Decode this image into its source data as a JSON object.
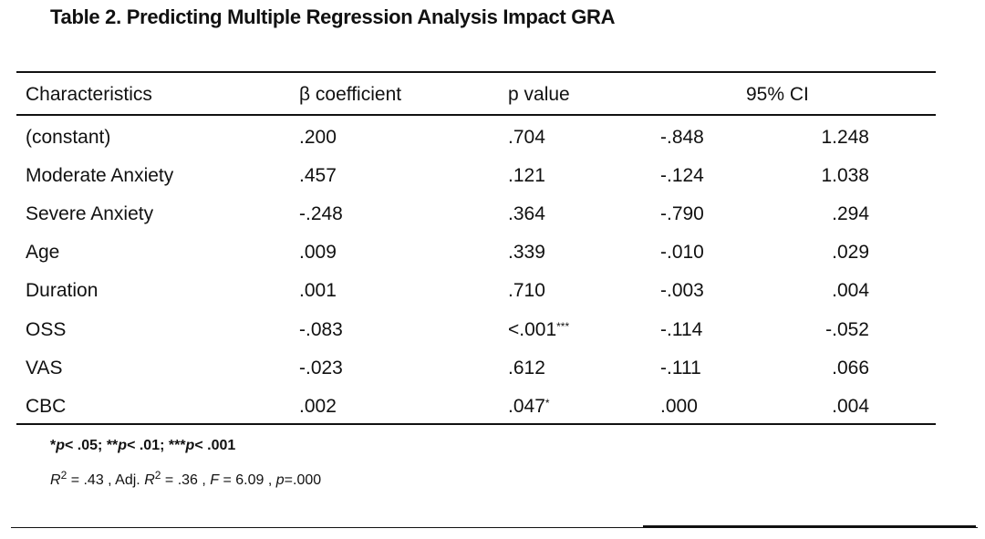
{
  "title": "Table 2. Predicting Multiple Regression Analysis Impact GRA",
  "headers": {
    "characteristics": "Characteristics",
    "beta": "β coefficient",
    "p": "p value",
    "ci": "95% CI"
  },
  "rows": [
    {
      "name": "(constant)",
      "beta": ".200",
      "p": ".704",
      "sig": "",
      "lo": "-.848",
      "hi": "1.248"
    },
    {
      "name": "Moderate Anxiety",
      "beta": ".457",
      "p": ".121",
      "sig": "",
      "lo": "-.124",
      "hi": "1.038"
    },
    {
      "name": "Severe Anxiety",
      "beta": "-.248",
      "p": ".364",
      "sig": "",
      "lo": "-.790",
      "hi": ".294"
    },
    {
      "name": "Age",
      "beta": ".009",
      "p": ".339",
      "sig": "",
      "lo": "-.010",
      "hi": ".029"
    },
    {
      "name": "Duration",
      "beta": ".001",
      "p": ".710",
      "sig": "",
      "lo": "-.003",
      "hi": ".004"
    },
    {
      "name": "OSS",
      "beta": "-.083",
      "p": "<.001",
      "sig": "***",
      "lo": "-.114",
      "hi": "-.052"
    },
    {
      "name": "VAS",
      "beta": "-.023",
      "p": ".612",
      "sig": "",
      "lo": "-.111",
      "hi": ".066"
    },
    {
      "name": "CBC",
      "beta": ".002",
      "p": ".047",
      "sig": "*",
      "lo": ".000",
      "hi": ".004"
    }
  ],
  "notes": {
    "sig_a": "*",
    "sig_a_p": "p",
    "sig_a_val": "< .05; **",
    "sig_b_p": "p",
    "sig_b_val": "< .01; ***",
    "sig_c_p": "p",
    "sig_c_val": "< .001",
    "r2_label": "R",
    "r2_exp": "2",
    "r2_val": " = .43 , Adj. ",
    "adj_label": "R",
    "adj_exp": "2",
    "adj_val": " = .36 , ",
    "f_label": "F",
    "f_val": " = 6.09 , ",
    "p_label": "p",
    "p_val": "=.000"
  }
}
